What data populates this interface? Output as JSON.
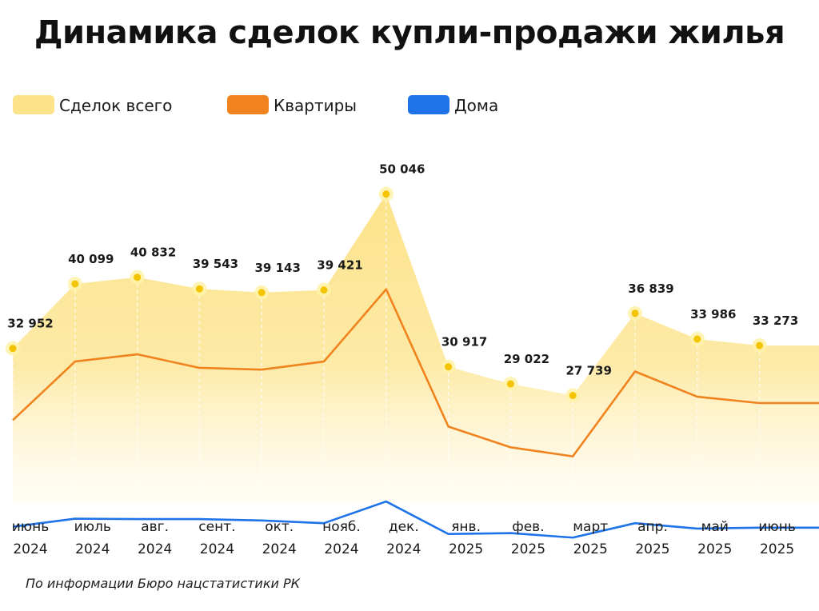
{
  "title": "Динамика сделок купли-продажи жилья",
  "source_note": "По информации Бюро нацстатистики РК",
  "colors": {
    "total": "#FCE38A",
    "apartments": "#F0831E",
    "houses": "#1E73E8"
  },
  "legend": [
    {
      "label": "Сделок всего",
      "color": "#FCE38A"
    },
    {
      "label": "Квартиры",
      "color": "#F0831E"
    },
    {
      "label": "Дома",
      "color": "#1E73E8"
    }
  ],
  "chart_data": {
    "type": "area",
    "title": "Динамика сделок купли-продажи жилья",
    "x": [
      {
        "month": "июнь",
        "year": "2024"
      },
      {
        "month": "июль",
        "year": "2024"
      },
      {
        "month": "авг.",
        "year": "2024"
      },
      {
        "month": "сент.",
        "year": "2024"
      },
      {
        "month": "окт.",
        "year": "2024"
      },
      {
        "month": "нояб.",
        "year": "2024"
      },
      {
        "month": "дек.",
        "year": "2024"
      },
      {
        "month": "янв.",
        "year": "2025"
      },
      {
        "month": "фев.",
        "year": "2025"
      },
      {
        "month": "март",
        "year": "2025"
      },
      {
        "month": "апр.",
        "year": "2025"
      },
      {
        "month": "май",
        "year": "2025"
      },
      {
        "month": "июнь",
        "year": "2025"
      }
    ],
    "series": [
      {
        "name": "Сделок всего",
        "values": [
          32952,
          40099,
          40832,
          39543,
          39143,
          39421,
          50046,
          30917,
          29022,
          27739,
          36839,
          33986,
          33273
        ],
        "labels": [
          "32 952",
          "40 099",
          "40 832",
          "39 543",
          "39 143",
          "39 421",
          "50 046",
          "30 917",
          "29 022",
          "27 739",
          "36 839",
          "33 986",
          "33 273"
        ]
      },
      {
        "name": "Квартиры",
        "values": [
          25000,
          31500,
          32300,
          30800,
          30600,
          31500,
          39500,
          24300,
          22000,
          21000,
          30400,
          27600,
          26900
        ]
      },
      {
        "name": "Дома",
        "values": [
          13200,
          14100,
          14050,
          14050,
          13900,
          13600,
          16000,
          12400,
          12500,
          12000,
          13600,
          13000,
          13100
        ]
      }
    ],
    "ylim": [
      6000,
      54000
    ],
    "grid": false,
    "legend_position": "top-left"
  }
}
